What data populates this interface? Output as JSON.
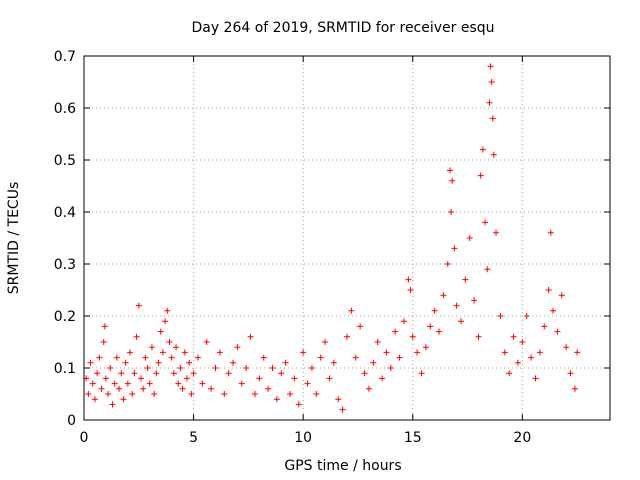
{
  "chart_data": {
    "type": "scatter",
    "title": "Day 264 of 2019, SRMTID for receiver esqu",
    "xlabel": "GPS time / hours",
    "ylabel": "SRMTID / TECUs",
    "xlim": [
      0,
      24
    ],
    "ylim": [
      0,
      0.7
    ],
    "x_ticks": [
      0,
      5,
      10,
      15,
      20
    ],
    "y_ticks": [
      0,
      0.1,
      0.2,
      0.3,
      0.4,
      0.5,
      0.6,
      0.7
    ],
    "x_tick_labels": [
      "0",
      "5",
      "10",
      "15",
      "20"
    ],
    "y_tick_labels": [
      "0",
      "0.1",
      "0.2",
      "0.3",
      "0.4",
      "0.5",
      "0.6",
      "0.7"
    ],
    "grid": true,
    "marker": "+",
    "color": "#ff0000",
    "series": [
      {
        "name": "SRMTID",
        "points": [
          [
            0.1,
            0.08
          ],
          [
            0.2,
            0.05
          ],
          [
            0.3,
            0.11
          ],
          [
            0.4,
            0.07
          ],
          [
            0.5,
            0.04
          ],
          [
            0.6,
            0.09
          ],
          [
            0.7,
            0.12
          ],
          [
            0.8,
            0.06
          ],
          [
            0.9,
            0.15
          ],
          [
            0.95,
            0.18
          ],
          [
            1.0,
            0.08
          ],
          [
            1.1,
            0.05
          ],
          [
            1.2,
            0.1
          ],
          [
            1.3,
            0.03
          ],
          [
            1.4,
            0.07
          ],
          [
            1.5,
            0.12
          ],
          [
            1.6,
            0.06
          ],
          [
            1.7,
            0.09
          ],
          [
            1.8,
            0.04
          ],
          [
            1.9,
            0.11
          ],
          [
            2.0,
            0.07
          ],
          [
            2.1,
            0.13
          ],
          [
            2.2,
            0.05
          ],
          [
            2.3,
            0.09
          ],
          [
            2.4,
            0.16
          ],
          [
            2.5,
            0.22
          ],
          [
            2.6,
            0.08
          ],
          [
            2.7,
            0.06
          ],
          [
            2.8,
            0.12
          ],
          [
            2.9,
            0.1
          ],
          [
            3.0,
            0.07
          ],
          [
            3.1,
            0.14
          ],
          [
            3.2,
            0.05
          ],
          [
            3.3,
            0.09
          ],
          [
            3.4,
            0.11
          ],
          [
            3.5,
            0.17
          ],
          [
            3.6,
            0.13
          ],
          [
            3.7,
            0.19
          ],
          [
            3.8,
            0.21
          ],
          [
            3.9,
            0.15
          ],
          [
            4.0,
            0.12
          ],
          [
            4.1,
            0.09
          ],
          [
            4.2,
            0.14
          ],
          [
            4.3,
            0.07
          ],
          [
            4.4,
            0.1
          ],
          [
            4.5,
            0.06
          ],
          [
            4.6,
            0.13
          ],
          [
            4.7,
            0.08
          ],
          [
            4.8,
            0.11
          ],
          [
            4.9,
            0.05
          ],
          [
            5.0,
            0.09
          ],
          [
            5.2,
            0.12
          ],
          [
            5.4,
            0.07
          ],
          [
            5.6,
            0.15
          ],
          [
            5.8,
            0.06
          ],
          [
            6.0,
            0.1
          ],
          [
            6.2,
            0.13
          ],
          [
            6.4,
            0.05
          ],
          [
            6.6,
            0.09
          ],
          [
            6.8,
            0.11
          ],
          [
            7.0,
            0.14
          ],
          [
            7.2,
            0.07
          ],
          [
            7.4,
            0.1
          ],
          [
            7.6,
            0.16
          ],
          [
            7.8,
            0.05
          ],
          [
            8.0,
            0.08
          ],
          [
            8.2,
            0.12
          ],
          [
            8.4,
            0.06
          ],
          [
            8.6,
            0.1
          ],
          [
            8.8,
            0.04
          ],
          [
            9.0,
            0.09
          ],
          [
            9.2,
            0.11
          ],
          [
            9.4,
            0.05
          ],
          [
            9.6,
            0.08
          ],
          [
            9.8,
            0.03
          ],
          [
            10.0,
            0.13
          ],
          [
            10.2,
            0.07
          ],
          [
            10.4,
            0.1
          ],
          [
            10.6,
            0.05
          ],
          [
            10.8,
            0.12
          ],
          [
            11.0,
            0.15
          ],
          [
            11.2,
            0.08
          ],
          [
            11.4,
            0.11
          ],
          [
            11.6,
            0.04
          ],
          [
            11.8,
            0.02
          ],
          [
            12.0,
            0.16
          ],
          [
            12.2,
            0.21
          ],
          [
            12.4,
            0.12
          ],
          [
            12.6,
            0.18
          ],
          [
            12.8,
            0.09
          ],
          [
            13.0,
            0.06
          ],
          [
            13.2,
            0.11
          ],
          [
            13.4,
            0.15
          ],
          [
            13.6,
            0.08
          ],
          [
            13.8,
            0.13
          ],
          [
            14.0,
            0.1
          ],
          [
            14.2,
            0.17
          ],
          [
            14.4,
            0.12
          ],
          [
            14.6,
            0.19
          ],
          [
            14.8,
            0.27
          ],
          [
            14.9,
            0.25
          ],
          [
            15.0,
            0.16
          ],
          [
            15.2,
            0.13
          ],
          [
            15.4,
            0.09
          ],
          [
            15.6,
            0.14
          ],
          [
            15.8,
            0.18
          ],
          [
            16.0,
            0.21
          ],
          [
            16.2,
            0.17
          ],
          [
            16.4,
            0.24
          ],
          [
            16.6,
            0.3
          ],
          [
            16.7,
            0.48
          ],
          [
            16.75,
            0.4
          ],
          [
            16.8,
            0.46
          ],
          [
            16.9,
            0.33
          ],
          [
            17.0,
            0.22
          ],
          [
            17.2,
            0.19
          ],
          [
            17.4,
            0.27
          ],
          [
            17.6,
            0.35
          ],
          [
            17.8,
            0.23
          ],
          [
            18.0,
            0.16
          ],
          [
            18.1,
            0.47
          ],
          [
            18.2,
            0.52
          ],
          [
            18.3,
            0.38
          ],
          [
            18.4,
            0.29
          ],
          [
            18.5,
            0.61
          ],
          [
            18.55,
            0.68
          ],
          [
            18.6,
            0.65
          ],
          [
            18.65,
            0.58
          ],
          [
            18.7,
            0.51
          ],
          [
            18.8,
            0.36
          ],
          [
            19.0,
            0.2
          ],
          [
            19.2,
            0.13
          ],
          [
            19.4,
            0.09
          ],
          [
            19.6,
            0.16
          ],
          [
            19.8,
            0.11
          ],
          [
            20.0,
            0.15
          ],
          [
            20.2,
            0.2
          ],
          [
            20.4,
            0.12
          ],
          [
            20.6,
            0.08
          ],
          [
            20.8,
            0.13
          ],
          [
            21.0,
            0.18
          ],
          [
            21.2,
            0.25
          ],
          [
            21.3,
            0.36
          ],
          [
            21.4,
            0.21
          ],
          [
            21.6,
            0.17
          ],
          [
            21.8,
            0.24
          ],
          [
            22.0,
            0.14
          ],
          [
            22.2,
            0.09
          ],
          [
            22.4,
            0.06
          ],
          [
            22.5,
            0.13
          ]
        ]
      }
    ]
  }
}
